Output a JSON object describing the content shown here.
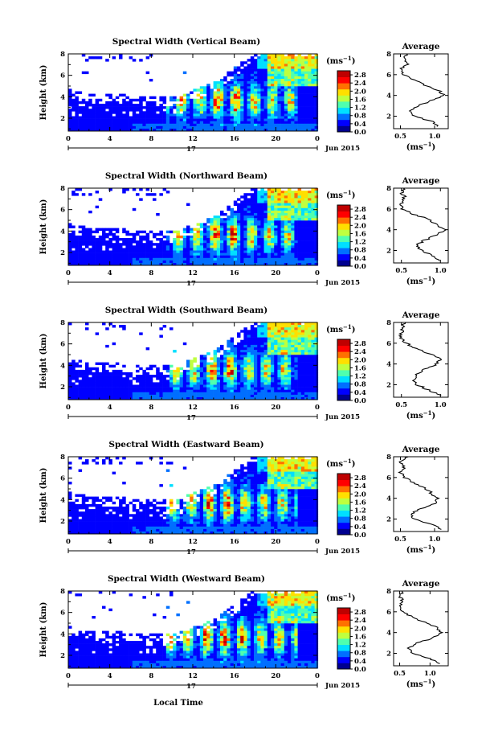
{
  "figure": {
    "xlabel": "Local Time",
    "ylabel": "Height (km)",
    "date_label": "Jun 2015",
    "day_label": "17",
    "colorbar_unit": "(ms",
    "colorbar_unit_exp": "−1",
    "colorbar_unit_close": ")",
    "profile_title": "Average",
    "profile_xlabel": "(ms",
    "profile_xlabel_exp": "−1",
    "profile_xlabel_close": ")"
  },
  "colormap": [
    "#00008f",
    "#0000ff",
    "#006fff",
    "#00dfff",
    "#4fffaf",
    "#bfff3f",
    "#ffdf00",
    "#ff7000",
    "#ff0000",
    "#bf0000"
  ],
  "chart_data": [
    {
      "type": "heatmap",
      "title": "Spectral Width (Vertical Beam)",
      "x_ticks": [
        "0",
        "4",
        "8",
        "12",
        "16",
        "20",
        "0"
      ],
      "xlim": [
        0,
        24
      ],
      "y_ticks": [
        "2",
        "4",
        "6",
        "8"
      ],
      "ylim": [
        0.8,
        8.0
      ],
      "colorbar": {
        "ticks": [
          "0.0",
          "0.4",
          "0.8",
          "1.2",
          "1.6",
          "2.0",
          "2.4",
          "2.8"
        ],
        "range": [
          0,
          3.0
        ]
      },
      "profile": {
        "title": "Average",
        "x_ticks": [
          "0.5",
          "1.0"
        ],
        "xlim": [
          0.4,
          1.2
        ],
        "y_ticks": [
          "2",
          "4",
          "6",
          "8"
        ],
        "ylim": [
          0.8,
          8.0
        ],
        "heights": [
          1.0,
          1.5,
          2.0,
          2.5,
          3.0,
          3.5,
          4.0,
          4.5,
          5.0,
          5.5,
          6.0,
          6.5,
          7.0,
          7.5,
          8.0
        ],
        "values": [
          1.05,
          0.95,
          0.7,
          0.65,
          0.75,
          0.95,
          1.15,
          1.05,
          0.85,
          0.7,
          0.55,
          0.5,
          0.6,
          0.55,
          0.6
        ]
      }
    },
    {
      "type": "heatmap",
      "title": "Spectral Width (Northward Beam)",
      "x_ticks": [
        "0",
        "4",
        "8",
        "12",
        "16",
        "20",
        "0"
      ],
      "xlim": [
        0,
        24
      ],
      "y_ticks": [
        "2",
        "4",
        "6",
        "8"
      ],
      "ylim": [
        0.8,
        8.0
      ],
      "colorbar": {
        "ticks": [
          "0.0",
          "0.4",
          "0.8",
          "1.2",
          "1.6",
          "2.0",
          "2.4",
          "2.8"
        ],
        "range": [
          0,
          3.0
        ]
      },
      "profile": {
        "title": "Average",
        "x_ticks": [
          "0.5",
          "1.0"
        ],
        "xlim": [
          0.4,
          1.1
        ],
        "y_ticks": [
          "2",
          "4",
          "6",
          "8"
        ],
        "ylim": [
          0.8,
          8.0
        ],
        "heights": [
          1.0,
          1.5,
          2.0,
          2.5,
          3.0,
          3.5,
          4.0,
          4.5,
          5.0,
          5.5,
          6.0,
          6.5,
          7.0,
          7.5,
          8.0
        ],
        "values": [
          1.0,
          0.9,
          0.75,
          0.7,
          0.8,
          0.95,
          1.05,
          0.95,
          0.85,
          0.65,
          0.5,
          0.5,
          0.55,
          0.5,
          0.55
        ]
      }
    },
    {
      "type": "heatmap",
      "title": "Spectral Width (Southward Beam)",
      "x_ticks": [
        "0",
        "4",
        "8",
        "12",
        "16",
        "20",
        "0"
      ],
      "xlim": [
        0,
        24
      ],
      "y_ticks": [
        "2",
        "4",
        "6",
        "8"
      ],
      "ylim": [
        0.8,
        8.0
      ],
      "colorbar": {
        "ticks": [
          "0.0",
          "0.4",
          "0.8",
          "1.2",
          "1.6",
          "2.0",
          "2.4",
          "2.8"
        ],
        "range": [
          0,
          3.0
        ]
      },
      "profile": {
        "title": "Average",
        "x_ticks": [
          "0.5",
          "1.0"
        ],
        "xlim": [
          0.4,
          1.1
        ],
        "y_ticks": [
          "2",
          "4",
          "6",
          "8"
        ],
        "ylim": [
          0.8,
          8.0
        ],
        "heights": [
          1.0,
          1.5,
          2.0,
          2.5,
          3.0,
          3.5,
          4.0,
          4.5,
          5.0,
          5.5,
          6.0,
          6.5,
          7.0,
          7.5,
          8.0
        ],
        "values": [
          1.0,
          0.85,
          0.7,
          0.65,
          0.7,
          0.8,
          0.95,
          1.0,
          0.85,
          0.7,
          0.55,
          0.5,
          0.5,
          0.5,
          0.55
        ]
      }
    },
    {
      "type": "heatmap",
      "title": "Spectral Width (Eastward Beam)",
      "x_ticks": [
        "0",
        "4",
        "8",
        "12",
        "16",
        "20",
        "0"
      ],
      "xlim": [
        0,
        24
      ],
      "y_ticks": [
        "2",
        "4",
        "6",
        "8"
      ],
      "ylim": [
        0.8,
        8.0
      ],
      "colorbar": {
        "ticks": [
          "0.0",
          "0.4",
          "0.8",
          "1.2",
          "1.6",
          "2.0",
          "2.4",
          "2.8"
        ],
        "range": [
          0,
          3.0
        ]
      },
      "profile": {
        "title": "Average",
        "x_ticks": [
          "0.5",
          "1.0"
        ],
        "xlim": [
          0.4,
          1.2
        ],
        "y_ticks": [
          "2",
          "4",
          "6",
          "8"
        ],
        "ylim": [
          0.8,
          8.0
        ],
        "heights": [
          1.0,
          1.5,
          2.0,
          2.5,
          3.0,
          3.5,
          4.0,
          4.5,
          5.0,
          5.5,
          6.0,
          6.5,
          7.0,
          7.5,
          8.0
        ],
        "values": [
          1.1,
          0.95,
          0.7,
          0.65,
          0.8,
          1.0,
          1.05,
          0.95,
          0.85,
          0.7,
          0.55,
          0.5,
          0.55,
          0.5,
          0.6
        ]
      }
    },
    {
      "type": "heatmap",
      "title": "Spectral Width (Westward Beam)",
      "x_ticks": [
        "0",
        "4",
        "8",
        "12",
        "16",
        "20",
        "0"
      ],
      "xlim": [
        0,
        24
      ],
      "y_ticks": [
        "2",
        "4",
        "6",
        "8"
      ],
      "ylim": [
        0.8,
        8.0
      ],
      "colorbar": {
        "ticks": [
          "0.0",
          "0.4",
          "0.8",
          "1.2",
          "1.6",
          "2.0",
          "2.4",
          "2.8"
        ],
        "range": [
          0,
          3.0
        ]
      },
      "profile": {
        "title": "Average",
        "x_ticks": [
          "0.5",
          "1.0"
        ],
        "xlim": [
          0.4,
          1.3
        ],
        "y_ticks": [
          "2",
          "4",
          "6",
          "8"
        ],
        "ylim": [
          0.8,
          8.0
        ],
        "heights": [
          1.0,
          1.5,
          2.0,
          2.5,
          3.0,
          3.5,
          4.0,
          4.5,
          5.0,
          5.5,
          6.0,
          6.5,
          7.0,
          7.5,
          8.0
        ],
        "values": [
          1.15,
          1.0,
          0.7,
          0.65,
          0.8,
          1.05,
          1.2,
          1.1,
          0.9,
          0.7,
          0.55,
          0.5,
          0.55,
          0.5,
          0.55
        ]
      }
    }
  ]
}
